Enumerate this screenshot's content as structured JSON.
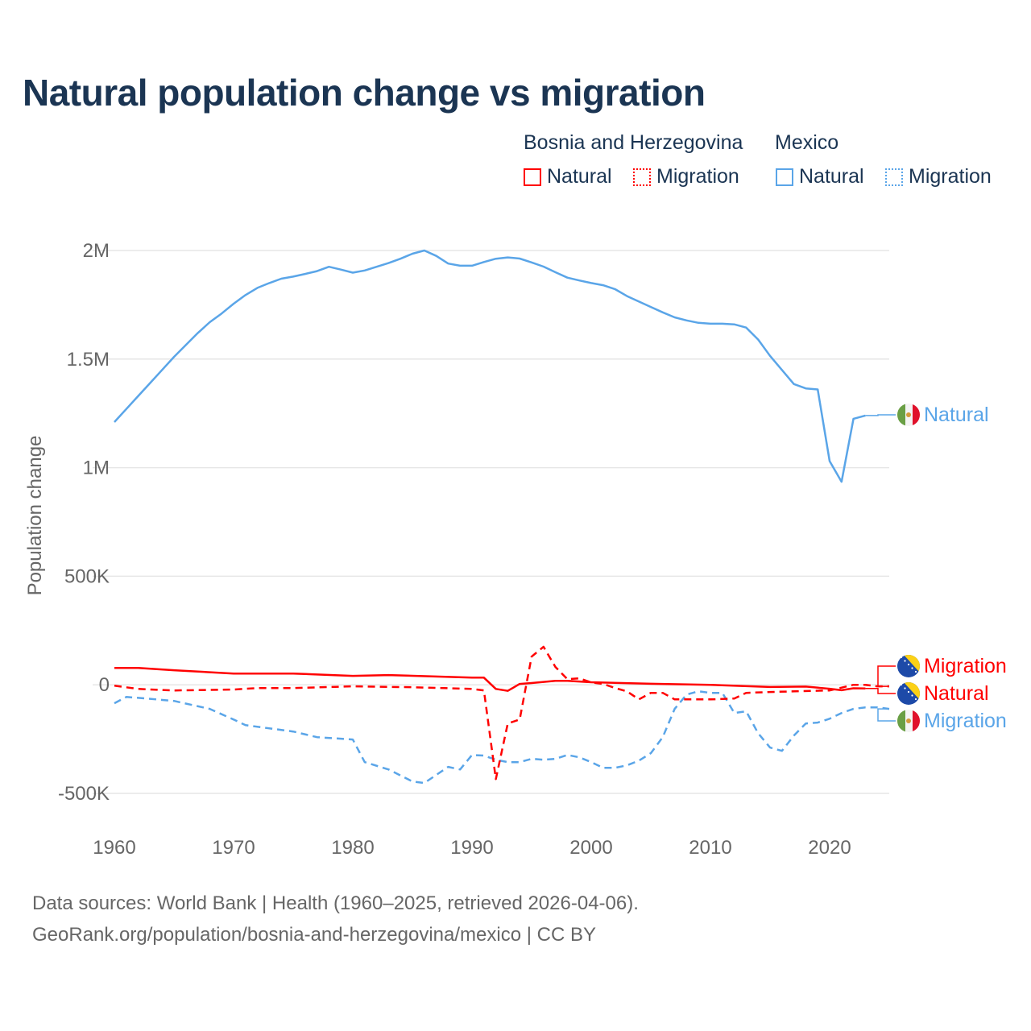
{
  "title": "Natural population change vs migration",
  "legend": {
    "groups": [
      {
        "name": "Bosnia and Herzegovina",
        "color": "#ff0000",
        "items": [
          "Natural",
          "Migration"
        ]
      },
      {
        "name": "Mexico",
        "color": "#5aa5e8",
        "items": [
          "Natural",
          "Migration"
        ]
      }
    ]
  },
  "footer": {
    "line1": "Data sources: World Bank | Health (1960–2025, retrieved 2026-04-06).",
    "line2": "GeoRank.org/population/bosnia-and-herzegovina/mexico | CC BY"
  },
  "chart_data": {
    "type": "line",
    "title": "Natural population change vs migration",
    "xlabel": "",
    "ylabel": "Population change",
    "xlim": [
      1960,
      2025
    ],
    "ylim": [
      -500000,
      2000000
    ],
    "x_ticks": [
      1960,
      1970,
      1980,
      1990,
      2000,
      2010,
      2020
    ],
    "x_tick_labels": [
      "1960",
      "1970",
      "1980",
      "1990",
      "2000",
      "2010",
      "2020"
    ],
    "y_ticks": [
      -500000,
      0,
      500000,
      1000000,
      1500000,
      2000000
    ],
    "y_tick_labels": [
      "-500K",
      "0",
      "500K",
      "1M",
      "1.5M",
      "2M"
    ],
    "grid": true,
    "series": [
      {
        "name": "Mexico Natural",
        "label": "Natural",
        "country": "Mexico",
        "color": "#5aa5e8",
        "dash": false,
        "x": [
          1960,
          1961,
          1962,
          1963,
          1964,
          1965,
          1966,
          1967,
          1968,
          1969,
          1970,
          1971,
          1972,
          1973,
          1974,
          1975,
          1976,
          1977,
          1978,
          1979,
          1980,
          1981,
          1982,
          1983,
          1984,
          1985,
          1986,
          1987,
          1988,
          1989,
          1990,
          1991,
          1992,
          1993,
          1994,
          1995,
          1996,
          1997,
          1998,
          1999,
          2000,
          2001,
          2002,
          2003,
          2004,
          2005,
          2006,
          2007,
          2008,
          2009,
          2010,
          2011,
          2012,
          2013,
          2014,
          2015,
          2016,
          2017,
          2018,
          2019,
          2020,
          2021,
          2022,
          2023
        ],
        "y": [
          1210000,
          1270000,
          1330000,
          1390000,
          1450000,
          1510000,
          1565000,
          1620000,
          1670000,
          1710000,
          1755000,
          1795000,
          1828000,
          1850000,
          1870000,
          1880000,
          1892000,
          1905000,
          1925000,
          1912000,
          1898000,
          1908000,
          1925000,
          1942000,
          1962000,
          1985000,
          2000000,
          1975000,
          1940000,
          1930000,
          1930000,
          1947000,
          1962000,
          1968000,
          1963000,
          1945000,
          1926000,
          1900000,
          1875000,
          1862000,
          1850000,
          1840000,
          1822000,
          1790000,
          1765000,
          1740000,
          1715000,
          1692000,
          1678000,
          1667000,
          1663000,
          1663000,
          1660000,
          1645000,
          1590000,
          1515000,
          1450000,
          1385000,
          1365000,
          1360000,
          1030000,
          935000,
          1225000,
          1240000
        ]
      },
      {
        "name": "Mexico Migration",
        "label": "Migration",
        "country": "Mexico",
        "color": "#5aa5e8",
        "dash": true,
        "x": [
          1960,
          1961,
          1962,
          1965,
          1968,
          1970,
          1971,
          1975,
          1977,
          1980,
          1981,
          1983,
          1985,
          1986,
          1988,
          1989,
          1990,
          1991,
          1992,
          1993,
          1994,
          1995,
          1996,
          1997,
          1998,
          1999,
          2000,
          2001,
          2002,
          2003,
          2004,
          2005,
          2006,
          2007,
          2008,
          2009,
          2010,
          2011,
          2012,
          2013,
          2014,
          2015,
          2016,
          2017,
          2018,
          2019,
          2020,
          2021,
          2022,
          2023,
          2024,
          2025
        ],
        "y": [
          -85000,
          -56000,
          -60000,
          -74000,
          -111000,
          -160000,
          -186000,
          -215000,
          -241000,
          -252000,
          -356000,
          -390000,
          -445000,
          -452000,
          -378000,
          -390000,
          -323000,
          -326000,
          -345000,
          -356000,
          -356000,
          -341000,
          -345000,
          -341000,
          -323000,
          -334000,
          -356000,
          -382000,
          -382000,
          -371000,
          -349000,
          -315000,
          -241000,
          -111000,
          -45000,
          -30000,
          -37000,
          -37000,
          -130000,
          -122000,
          -223000,
          -289000,
          -304000,
          -234000,
          -178000,
          -174000,
          -156000,
          -130000,
          -111000,
          -104000,
          -104000,
          -111000
        ]
      },
      {
        "name": "Bosnia and Herzegovina Natural",
        "label": "Natural",
        "country": "Bosnia and Herzegovina",
        "color": "#ff0000",
        "dash": false,
        "x": [
          1960,
          1962,
          1965,
          1970,
          1975,
          1980,
          1983,
          1990,
          1991,
          1992,
          1993,
          1994,
          1995,
          1997,
          1998,
          2000,
          2005,
          2010,
          2015,
          2018,
          2020,
          2021,
          2022,
          2023
        ],
        "y": [
          78000,
          78000,
          67000,
          52000,
          52000,
          41000,
          45000,
          33000,
          33000,
          -19000,
          -28000,
          4000,
          8000,
          18000,
          18000,
          12000,
          5000,
          0,
          -10000,
          -8000,
          -18000,
          -25000,
          -16000,
          -17000
        ]
      },
      {
        "name": "Bosnia and Herzegovina Migration",
        "label": "Migration",
        "country": "Bosnia and Herzegovina",
        "color": "#ff0000",
        "dash": true,
        "x": [
          1960,
          1962,
          1965,
          1970,
          1972,
          1975,
          1980,
          1985,
          1990,
          1991,
          1992,
          1993,
          1994,
          1995,
          1996,
          1997,
          1998,
          1999,
          2000,
          2001,
          2002,
          2003,
          2004,
          2005,
          2006,
          2007,
          2008,
          2010,
          2012,
          2013,
          2015,
          2020,
          2022,
          2023,
          2024,
          2025
        ],
        "y": [
          -4000,
          -19000,
          -26000,
          -22000,
          -15000,
          -15000,
          -7000,
          -11000,
          -19000,
          -26000,
          -434000,
          -178000,
          -160000,
          130000,
          175000,
          82000,
          26000,
          30000,
          11000,
          4000,
          -15000,
          -30000,
          -67000,
          -37000,
          -37000,
          -67000,
          -67000,
          -67000,
          -63000,
          -37000,
          -33000,
          -26000,
          0,
          0,
          -7000,
          -7000
        ]
      }
    ],
    "end_labels": [
      {
        "series": 0,
        "text": "Natural",
        "flag": "mexico"
      },
      {
        "series": 3,
        "text": "Migration",
        "flag": "bosnia"
      },
      {
        "series": 2,
        "text": "Natural",
        "flag": "bosnia"
      },
      {
        "series": 1,
        "text": "Migration",
        "flag": "mexico"
      }
    ]
  }
}
